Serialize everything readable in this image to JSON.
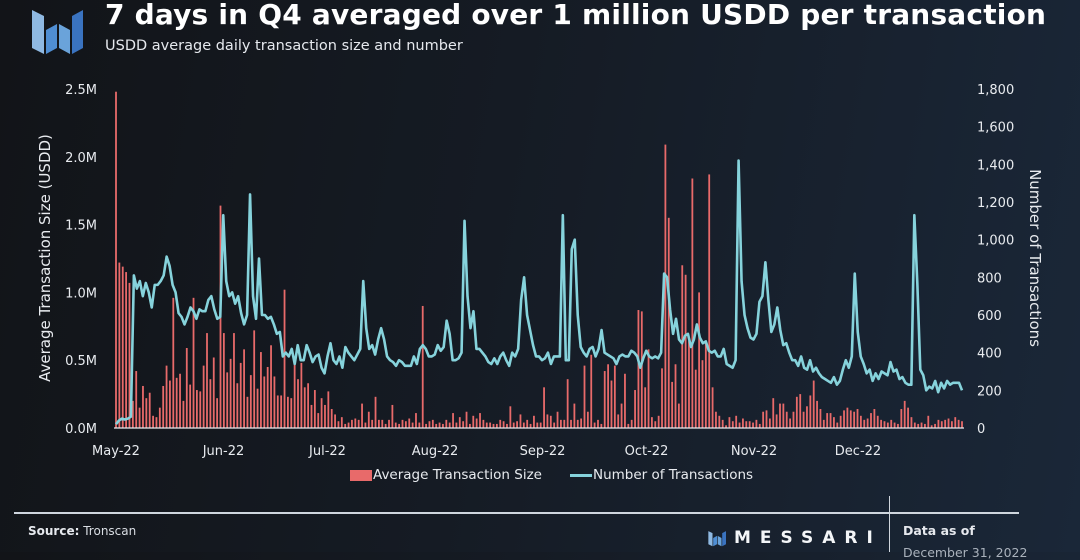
{
  "header": {
    "title": "7 days in Q4 averaged over 1 million USDD per transaction",
    "subtitle": "USDD average daily transaction size and number",
    "logo_icon": "messari-logo-icon"
  },
  "footer": {
    "source_label": "Source:",
    "source_value": "Tronscan",
    "brand": "MESSARI",
    "data_as_of_label": "Data as of",
    "data_as_of_value": "December 31, 2022"
  },
  "colors": {
    "bar": "#e86a6a",
    "line": "#86d3dc",
    "axis": "#e8ebef"
  },
  "chart_data": {
    "type": "bar+line",
    "title": "7 days in Q4 averaged over 1 million USDD per transaction",
    "subtitle": "USDD average daily transaction size and number",
    "xlabel": "",
    "ylabel_left": "Average Transaction Size (USDD)",
    "ylabel_right": "Number of Transactions",
    "x_start": "2022-05-01",
    "x_end": "2022-12-31",
    "x_ticks": [
      "May-22",
      "Jun-22",
      "Jul-22",
      "Aug-22",
      "Sep-22",
      "Oct-22",
      "Nov-22",
      "Dec-22"
    ],
    "y_left_ticks": [
      "0.0M",
      "0.5M",
      "1.0M",
      "1.5M",
      "2.0M",
      "2.5M"
    ],
    "y_left_range": [
      0,
      2500000
    ],
    "y_right_ticks": [
      "0",
      "200",
      "400",
      "600",
      "800",
      "1,000",
      "1,200",
      "1,400",
      "1,600",
      "1,800"
    ],
    "y_right_range": [
      0,
      1800
    ],
    "grid": false,
    "legend_position": "bottom",
    "legend": [
      "Average Transaction Size",
      "Number of Transactions"
    ],
    "series": [
      {
        "name": "Average Transaction Size",
        "type": "bar",
        "axis": "left",
        "unit": "USDD",
        "values": [
          2480000,
          1220000,
          1190000,
          1150000,
          1070000,
          200000,
          420000,
          150000,
          310000,
          220000,
          260000,
          90000,
          80000,
          150000,
          310000,
          460000,
          350000,
          960000,
          370000,
          400000,
          200000,
          590000,
          320000,
          960000,
          280000,
          270000,
          460000,
          700000,
          360000,
          520000,
          220000,
          1640000,
          700000,
          410000,
          510000,
          700000,
          330000,
          480000,
          580000,
          230000,
          390000,
          720000,
          290000,
          560000,
          380000,
          450000,
          610000,
          380000,
          240000,
          240000,
          1020000,
          230000,
          220000,
          500000,
          360000,
          480000,
          300000,
          330000,
          170000,
          280000,
          110000,
          220000,
          170000,
          270000,
          140000,
          100000,
          50000,
          80000,
          30000,
          40000,
          60000,
          70000,
          60000,
          180000,
          40000,
          120000,
          60000,
          230000,
          60000,
          60000,
          30000,
          60000,
          170000,
          40000,
          30000,
          60000,
          50000,
          70000,
          40000,
          110000,
          40000,
          900000,
          30000,
          50000,
          60000,
          30000,
          40000,
          30000,
          60000,
          40000,
          110000,
          40000,
          80000,
          50000,
          120000,
          30000,
          90000,
          70000,
          110000,
          60000,
          40000,
          40000,
          30000,
          30000,
          60000,
          50000,
          30000,
          160000,
          40000,
          50000,
          100000,
          40000,
          60000,
          30000,
          90000,
          40000,
          40000,
          300000,
          100000,
          90000,
          40000,
          120000,
          60000,
          60000,
          360000,
          60000,
          180000,
          60000,
          70000,
          460000,
          120000,
          540000,
          40000,
          60000,
          30000,
          420000,
          470000,
          350000,
          460000,
          100000,
          180000,
          400000,
          30000,
          60000,
          280000,
          870000,
          860000,
          300000,
          580000,
          80000,
          50000,
          90000,
          440000,
          2090000,
          1550000,
          340000,
          470000,
          180000,
          1200000,
          1130000,
          640000,
          1840000,
          430000,
          1000000,
          500000,
          640000,
          1870000,
          300000,
          120000,
          90000,
          60000,
          20000,
          80000,
          50000,
          90000,
          40000,
          70000,
          50000,
          50000,
          40000,
          60000,
          30000,
          120000,
          130000,
          70000,
          220000,
          100000,
          180000,
          180000,
          120000,
          70000,
          120000,
          230000,
          250000,
          120000,
          160000,
          240000,
          350000,
          200000,
          140000,
          60000,
          110000,
          110000,
          80000,
          40000,
          90000,
          130000,
          150000,
          130000,
          120000,
          140000,
          90000,
          60000,
          70000,
          110000,
          140000,
          90000,
          60000,
          50000,
          40000,
          60000,
          40000,
          30000,
          140000,
          200000,
          150000,
          80000,
          40000,
          30000,
          40000,
          30000,
          90000,
          20000,
          30000,
          60000,
          50000,
          60000,
          70000,
          50000,
          80000,
          60000,
          50000
        ]
      },
      {
        "name": "Number of Transactions",
        "type": "line",
        "axis": "right",
        "values": [
          20,
          40,
          50,
          45,
          50,
          60,
          810,
          740,
          780,
          700,
          770,
          720,
          640,
          760,
          760,
          780,
          810,
          910,
          860,
          760,
          720,
          610,
          590,
          550,
          590,
          640,
          620,
          580,
          630,
          620,
          620,
          680,
          700,
          630,
          580,
          590,
          1130,
          780,
          700,
          720,
          660,
          700,
          610,
          550,
          600,
          1240,
          700,
          580,
          900,
          600,
          600,
          580,
          590,
          550,
          500,
          510,
          380,
          400,
          380,
          420,
          340,
          440,
          360,
          360,
          440,
          400,
          350,
          380,
          390,
          320,
          290,
          380,
          450,
          360,
          340,
          380,
          320,
          430,
          400,
          380,
          360,
          390,
          420,
          780,
          530,
          420,
          440,
          390,
          470,
          530,
          470,
          380,
          360,
          350,
          330,
          360,
          350,
          330,
          330,
          330,
          380,
          340,
          420,
          440,
          420,
          380,
          380,
          390,
          440,
          410,
          430,
          570,
          500,
          360,
          360,
          370,
          400,
          1100,
          700,
          530,
          620,
          420,
          420,
          400,
          380,
          350,
          340,
          370,
          340,
          380,
          400,
          360,
          330,
          400,
          380,
          420,
          680,
          800,
          600,
          520,
          440,
          380,
          380,
          360,
          370,
          400,
          340,
          380,
          380,
          380,
          1130,
          360,
          360,
          950,
          1000,
          600,
          430,
          400,
          380,
          420,
          430,
          380,
          420,
          520,
          400,
          390,
          380,
          370,
          340,
          380,
          390,
          380,
          380,
          410,
          400,
          380,
          320,
          370,
          410,
          380,
          370,
          380,
          370,
          400,
          820,
          800,
          630,
          500,
          580,
          470,
          450,
          490,
          500,
          430,
          470,
          550,
          480,
          450,
          460,
          410,
          400,
          410,
          380,
          380,
          420,
          340,
          330,
          320,
          360,
          1420,
          780,
          600,
          530,
          480,
          470,
          500,
          670,
          700,
          880,
          680,
          510,
          550,
          640,
          520,
          440,
          450,
          400,
          360,
          360,
          330,
          380,
          320,
          310,
          360,
          300,
          320,
          290,
          270,
          260,
          250,
          240,
          270,
          230,
          250,
          310,
          360,
          320,
          380,
          820,
          510,
          380,
          340,
          290,
          310,
          250,
          290,
          260,
          300,
          290,
          280,
          350,
          300,
          310,
          260,
          270,
          240,
          230,
          230,
          1130,
          770,
          310,
          280,
          200,
          220,
          210,
          250,
          190,
          240,
          210,
          250,
          230,
          240,
          240,
          240,
          200
        ]
      }
    ]
  }
}
